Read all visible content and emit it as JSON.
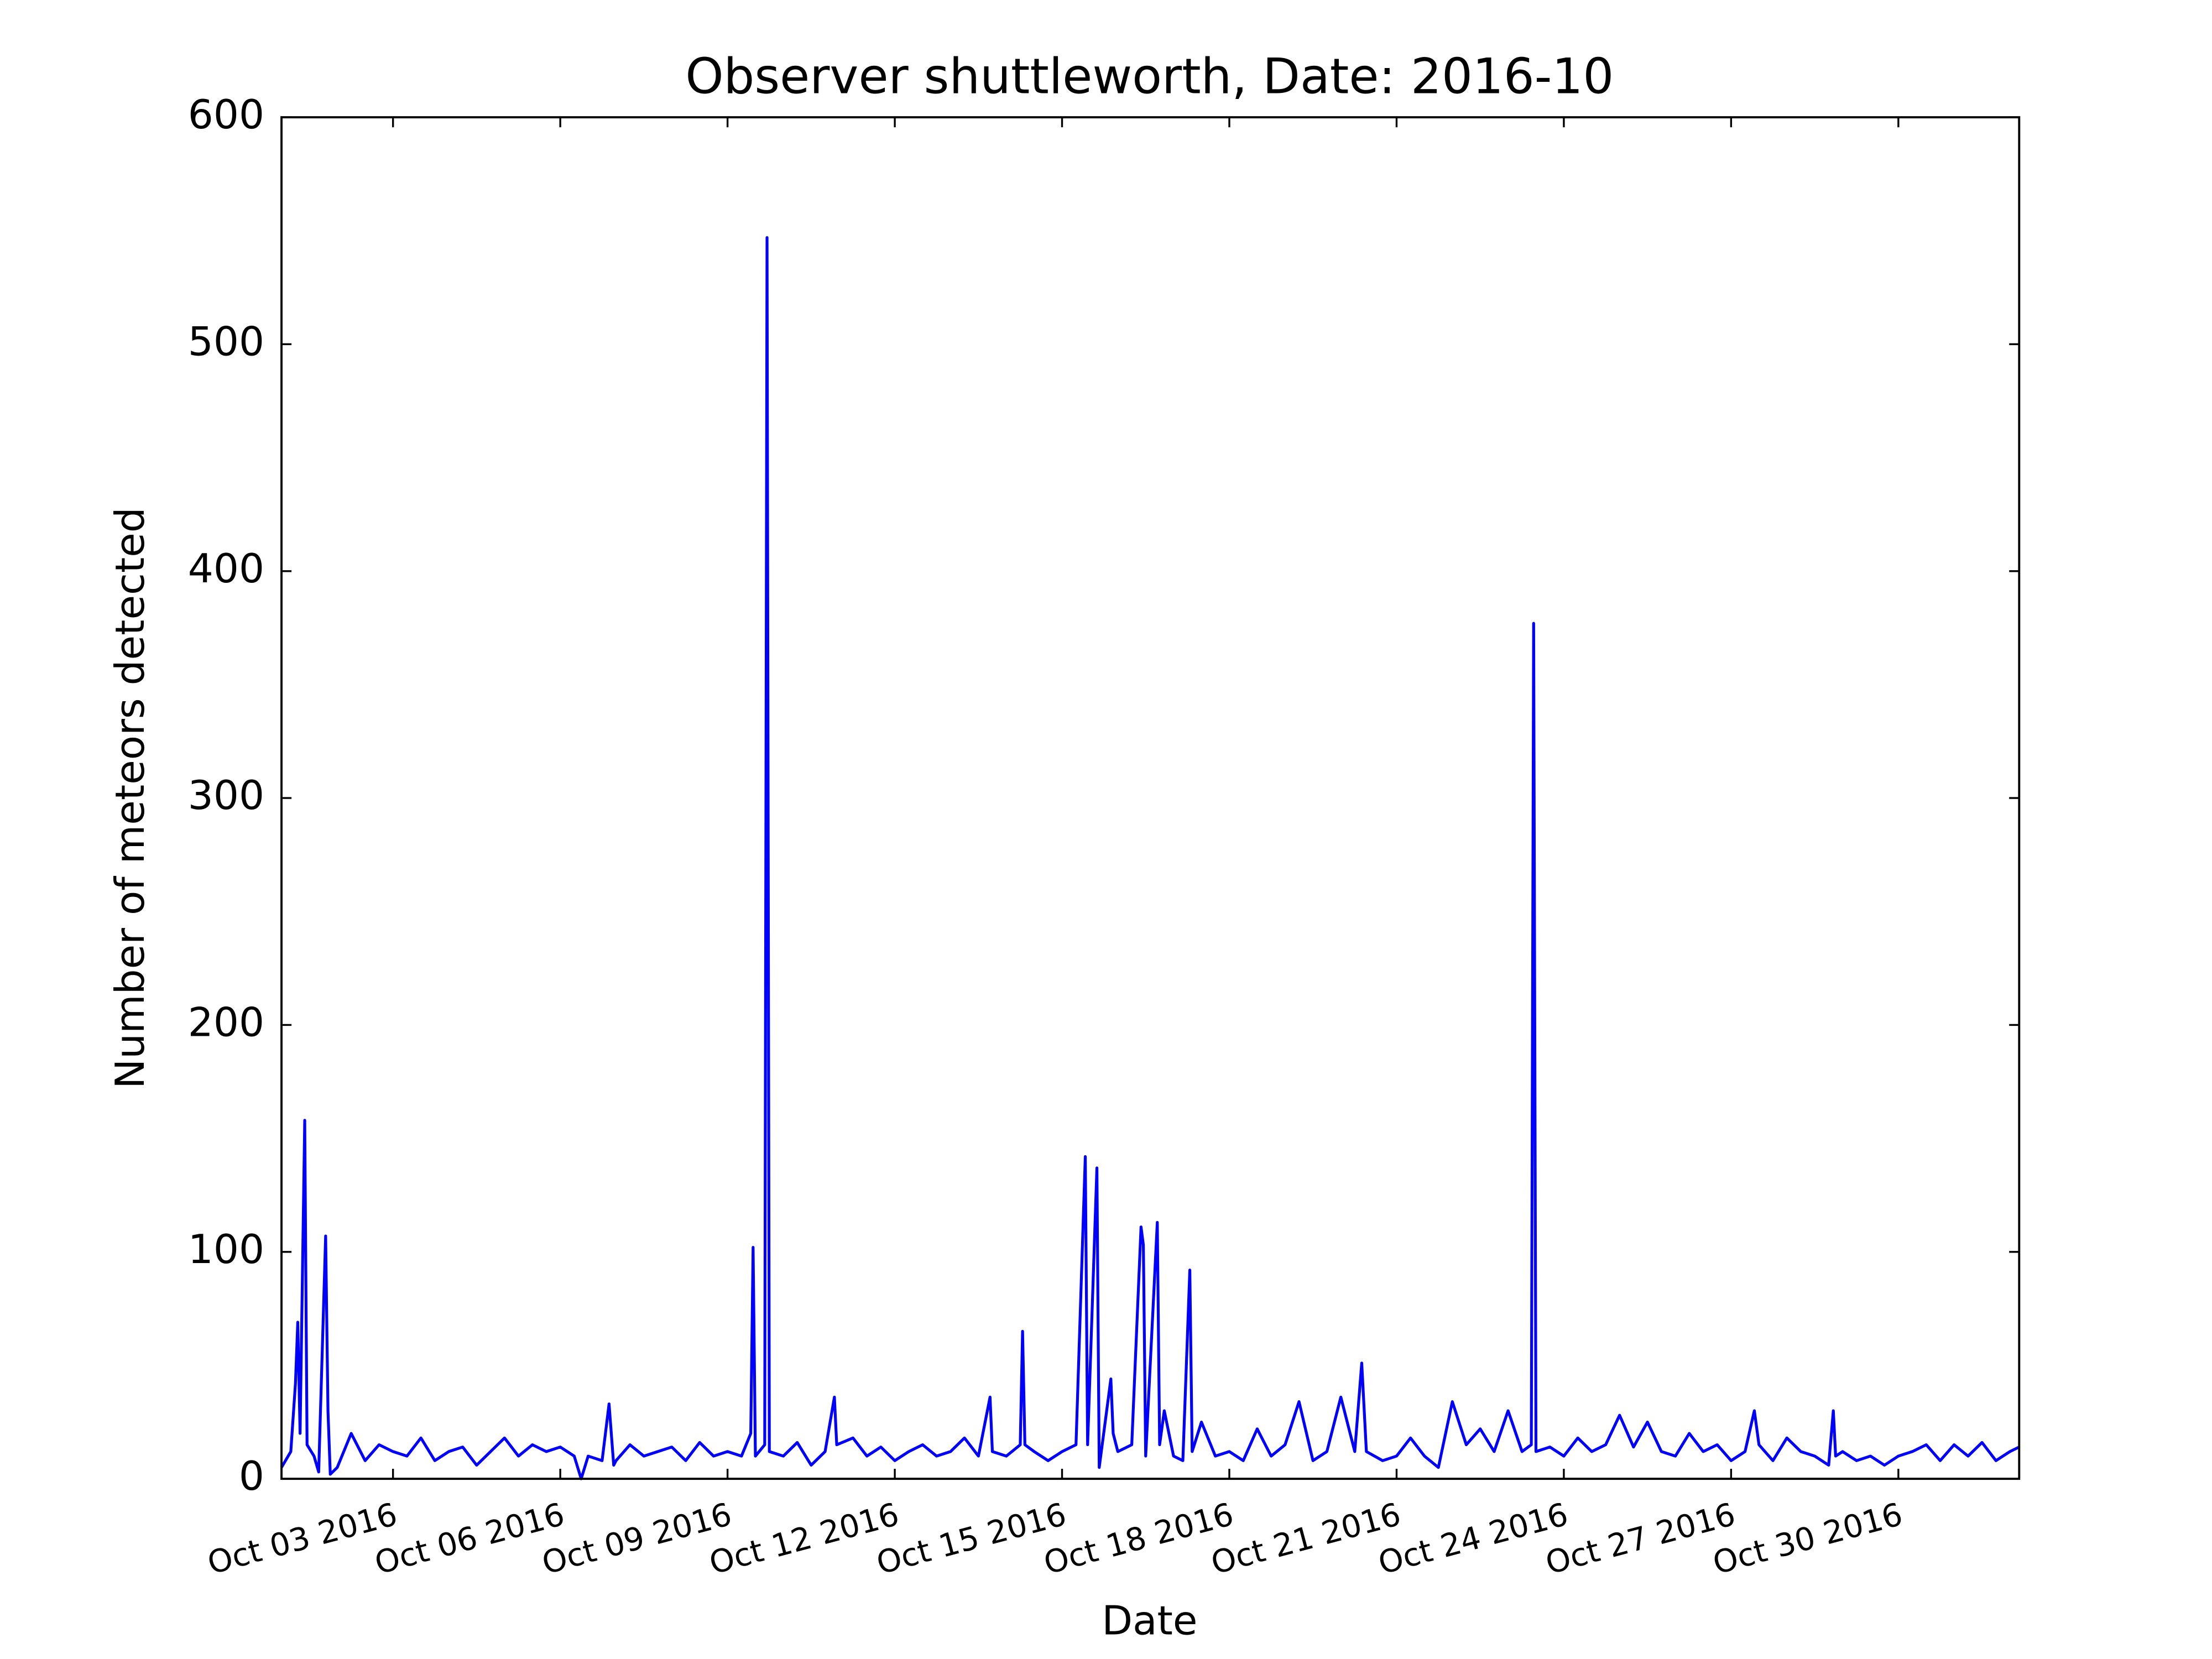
{
  "chart_data": {
    "type": "line",
    "title": "Observer shuttleworth, Date: 2016-10",
    "x_label": "Date",
    "y_label": "Number of meteors detected",
    "color": "#0000ff",
    "xlim": [
      "2016-10-01T00:00",
      "2016-11-01T04:00"
    ],
    "xticks": [
      {
        "value": "2016-10-03",
        "label": "Oct 03 2016"
      },
      {
        "value": "2016-10-06",
        "label": "Oct 06 2016"
      },
      {
        "value": "2016-10-09",
        "label": "Oct 09 2016"
      },
      {
        "value": "2016-10-12",
        "label": "Oct 12 2016"
      },
      {
        "value": "2016-10-15",
        "label": "Oct 15 2016"
      },
      {
        "value": "2016-10-18",
        "label": "Oct 18 2016"
      },
      {
        "value": "2016-10-21",
        "label": "Oct 21 2016"
      },
      {
        "value": "2016-10-24",
        "label": "Oct 24 2016"
      },
      {
        "value": "2016-10-27",
        "label": "Oct 27 2016"
      },
      {
        "value": "2016-10-30",
        "label": "Oct 30 2016"
      }
    ],
    "ylim": [
      0,
      600
    ],
    "yticks": [
      0,
      100,
      200,
      300,
      400,
      500,
      600
    ],
    "x": [
      "2016-10-01T00:00",
      "2016-10-01T04:00",
      "2016-10-01T06:00",
      "2016-10-01T07:00",
      "2016-10-01T08:00",
      "2016-10-01T10:00",
      "2016-10-01T11:00",
      "2016-10-01T14:00",
      "2016-10-01T16:00",
      "2016-10-01T19:00",
      "2016-10-01T20:00",
      "2016-10-01T21:00",
      "2016-10-02T00:00",
      "2016-10-02T06:00",
      "2016-10-02T12:00",
      "2016-10-02T18:00",
      "2016-10-03T00:00",
      "2016-10-03T06:00",
      "2016-10-03T12:00",
      "2016-10-03T18:00",
      "2016-10-04T00:00",
      "2016-10-04T06:00",
      "2016-10-04T12:00",
      "2016-10-04T18:00",
      "2016-10-05T00:00",
      "2016-10-05T06:00",
      "2016-10-05T12:00",
      "2016-10-05T18:00",
      "2016-10-06T00:00",
      "2016-10-06T06:00",
      "2016-10-06T09:00",
      "2016-10-06T12:00",
      "2016-10-06T18:00",
      "2016-10-06T21:00",
      "2016-10-06T23:00",
      "2016-10-07T00:00",
      "2016-10-07T06:00",
      "2016-10-07T12:00",
      "2016-10-07T18:00",
      "2016-10-08T00:00",
      "2016-10-08T06:00",
      "2016-10-08T12:00",
      "2016-10-08T18:00",
      "2016-10-09T00:00",
      "2016-10-09T06:00",
      "2016-10-09T10:00",
      "2016-10-09T11:00",
      "2016-10-09T12:00",
      "2016-10-09T16:00",
      "2016-10-09T17:00",
      "2016-10-09T18:00",
      "2016-10-10T00:00",
      "2016-10-10T06:00",
      "2016-10-10T12:00",
      "2016-10-10T18:00",
      "2016-10-10T22:00",
      "2016-10-10T23:00",
      "2016-10-11T06:00",
      "2016-10-11T12:00",
      "2016-10-11T18:00",
      "2016-10-12T00:00",
      "2016-10-12T06:00",
      "2016-10-12T12:00",
      "2016-10-12T18:00",
      "2016-10-13T00:00",
      "2016-10-13T06:00",
      "2016-10-13T12:00",
      "2016-10-13T17:00",
      "2016-10-13T18:00",
      "2016-10-14T00:00",
      "2016-10-14T06:00",
      "2016-10-14T07:00",
      "2016-10-14T08:00",
      "2016-10-14T12:00",
      "2016-10-14T18:00",
      "2016-10-15T00:00",
      "2016-10-15T06:00",
      "2016-10-15T10:00",
      "2016-10-15T11:00",
      "2016-10-15T15:00",
      "2016-10-15T16:00",
      "2016-10-15T21:00",
      "2016-10-15T22:00",
      "2016-10-16T00:00",
      "2016-10-16T06:00",
      "2016-10-16T10:00",
      "2016-10-16T11:00",
      "2016-10-16T12:00",
      "2016-10-16T17:00",
      "2016-10-16T18:00",
      "2016-10-16T20:00",
      "2016-10-17T00:00",
      "2016-10-17T04:00",
      "2016-10-17T07:00",
      "2016-10-17T08:00",
      "2016-10-17T12:00",
      "2016-10-17T18:00",
      "2016-10-18T00:00",
      "2016-10-18T06:00",
      "2016-10-18T12:00",
      "2016-10-18T18:00",
      "2016-10-19T00:00",
      "2016-10-19T06:00",
      "2016-10-19T12:00",
      "2016-10-19T18:00",
      "2016-10-20T00:00",
      "2016-10-20T06:00",
      "2016-10-20T09:00",
      "2016-10-20T11:00",
      "2016-10-20T18:00",
      "2016-10-21T00:00",
      "2016-10-21T06:00",
      "2016-10-21T12:00",
      "2016-10-21T18:00",
      "2016-10-22T00:00",
      "2016-10-22T06:00",
      "2016-10-22T12:00",
      "2016-10-22T18:00",
      "2016-10-23T00:00",
      "2016-10-23T06:00",
      "2016-10-23T10:00",
      "2016-10-23T11:00",
      "2016-10-23T12:00",
      "2016-10-23T18:00",
      "2016-10-24T00:00",
      "2016-10-24T06:00",
      "2016-10-24T12:00",
      "2016-10-24T18:00",
      "2016-10-25T00:00",
      "2016-10-25T06:00",
      "2016-10-25T12:00",
      "2016-10-25T18:00",
      "2016-10-26T00:00",
      "2016-10-26T06:00",
      "2016-10-26T12:00",
      "2016-10-26T18:00",
      "2016-10-27T00:00",
      "2016-10-27T06:00",
      "2016-10-27T10:00",
      "2016-10-27T12:00",
      "2016-10-27T18:00",
      "2016-10-28T00:00",
      "2016-10-28T06:00",
      "2016-10-28T12:00",
      "2016-10-28T18:00",
      "2016-10-28T20:00",
      "2016-10-28T21:00",
      "2016-10-29T00:00",
      "2016-10-29T06:00",
      "2016-10-29T12:00",
      "2016-10-29T18:00",
      "2016-10-30T00:00",
      "2016-10-30T06:00",
      "2016-10-30T12:00",
      "2016-10-30T18:00",
      "2016-10-31T00:00",
      "2016-10-31T06:00",
      "2016-10-31T12:00",
      "2016-10-31T18:00",
      "2016-11-01T00:00",
      "2016-11-01T04:00"
    ],
    "values": [
      5,
      12,
      42,
      69,
      20,
      158,
      15,
      10,
      3,
      107,
      30,
      2,
      5,
      20,
      8,
      15,
      12,
      10,
      18,
      8,
      12,
      14,
      6,
      12,
      18,
      10,
      15,
      12,
      14,
      10,
      0,
      10,
      8,
      33,
      6,
      8,
      15,
      10,
      12,
      14,
      8,
      16,
      10,
      12,
      10,
      20,
      102,
      10,
      15,
      547,
      12,
      10,
      16,
      6,
      12,
      36,
      15,
      18,
      10,
      14,
      8,
      12,
      15,
      10,
      12,
      18,
      10,
      36,
      12,
      10,
      15,
      65,
      15,
      12,
      8,
      12,
      15,
      142,
      15,
      137,
      5,
      44,
      20,
      12,
      15,
      111,
      103,
      10,
      113,
      15,
      30,
      10,
      8,
      92,
      12,
      25,
      10,
      12,
      8,
      22,
      10,
      15,
      34,
      8,
      12,
      36,
      12,
      51,
      12,
      8,
      10,
      18,
      10,
      5,
      34,
      15,
      22,
      12,
      30,
      12,
      15,
      377,
      12,
      14,
      10,
      18,
      12,
      15,
      28,
      14,
      25,
      12,
      10,
      20,
      12,
      15,
      8,
      12,
      30,
      15,
      8,
      18,
      12,
      10,
      6,
      30,
      10,
      12,
      8,
      10,
      6,
      10,
      12,
      15,
      8,
      15,
      10,
      16,
      8,
      12,
      14
    ]
  }
}
